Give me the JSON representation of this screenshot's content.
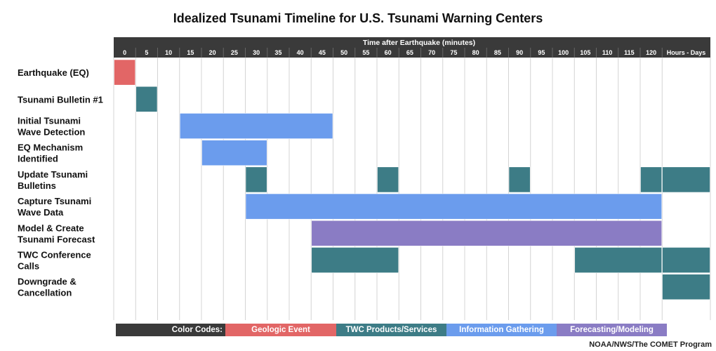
{
  "title": "Idealized Tsunami Timeline for U.S. Tsunami Warning Centers",
  "credit": "NOAA/NWS/The COMET Program",
  "colors": {
    "header": "#3a3a3a",
    "grid": "#d4d4d4",
    "geologic": "#e26666",
    "products": "#3d7c86",
    "information": "#6b9ced",
    "forecasting": "#8a7cc4",
    "legend_label": "#3a3a3a"
  },
  "legend": [
    {
      "label": "Color Codes:",
      "color": "#3a3a3a"
    },
    {
      "label": "Geologic Event",
      "color": "#e26666"
    },
    {
      "label": "TWC Products/Services",
      "color": "#3d7c86"
    },
    {
      "label": "Information Gathering",
      "color": "#6b9ced"
    },
    {
      "label": "Forecasting/Modeling",
      "color": "#8a7cc4"
    }
  ],
  "chart_data": {
    "type": "gantt",
    "xlabel": "Time after Earthquake (minutes)",
    "x_ticks": [
      "0",
      "5",
      "10",
      "15",
      "20",
      "25",
      "30",
      "35",
      "40",
      "45",
      "50",
      "55",
      "60",
      "65",
      "70",
      "75",
      "80",
      "85",
      "90",
      "95",
      "100",
      "105",
      "110",
      "115",
      "120",
      "Hours - Days"
    ],
    "rows": [
      {
        "label": [
          "Earthquake (EQ)"
        ],
        "segments": [
          {
            "start": 0,
            "end": 5,
            "category": "geologic"
          }
        ]
      },
      {
        "label": [
          "Tsunami Bulletin #1"
        ],
        "segments": [
          {
            "start": 5,
            "end": 10,
            "category": "products"
          }
        ]
      },
      {
        "label": [
          "Initial Tsunami",
          "Wave Detection"
        ],
        "segments": [
          {
            "start": 15,
            "end": 50,
            "category": "information"
          }
        ]
      },
      {
        "label": [
          "EQ Mechanism",
          "Identified"
        ],
        "segments": [
          {
            "start": 20,
            "end": 35,
            "category": "information"
          }
        ]
      },
      {
        "label": [
          "Update Tsunami",
          "Bulletins"
        ],
        "segments": [
          {
            "start": 30,
            "end": 35,
            "category": "products"
          },
          {
            "start": 60,
            "end": 65,
            "category": "products"
          },
          {
            "start": 90,
            "end": 95,
            "category": "products"
          },
          {
            "start": 120,
            "end": 125,
            "category": "products"
          },
          {
            "start": "Hours - Days",
            "end": "Hours - Days",
            "category": "products"
          }
        ]
      },
      {
        "label": [
          "Capture Tsunami",
          "Wave Data"
        ],
        "segments": [
          {
            "start": 30,
            "end": 125,
            "category": "information"
          }
        ]
      },
      {
        "label": [
          "Model & Create",
          "Tsunami Forecast"
        ],
        "segments": [
          {
            "start": 45,
            "end": 125,
            "category": "forecasting"
          }
        ]
      },
      {
        "label": [
          "TWC Conference",
          "Calls"
        ],
        "segments": [
          {
            "start": 45,
            "end": 65,
            "category": "products"
          },
          {
            "start": 105,
            "end": 125,
            "category": "products"
          },
          {
            "start": "Hours - Days",
            "end": "Hours - Days",
            "category": "products"
          }
        ]
      },
      {
        "label": [
          "Downgrade &",
          "Cancellation"
        ],
        "segments": [
          {
            "start": "Hours - Days",
            "end": "Hours - Days",
            "category": "products"
          }
        ]
      }
    ]
  }
}
